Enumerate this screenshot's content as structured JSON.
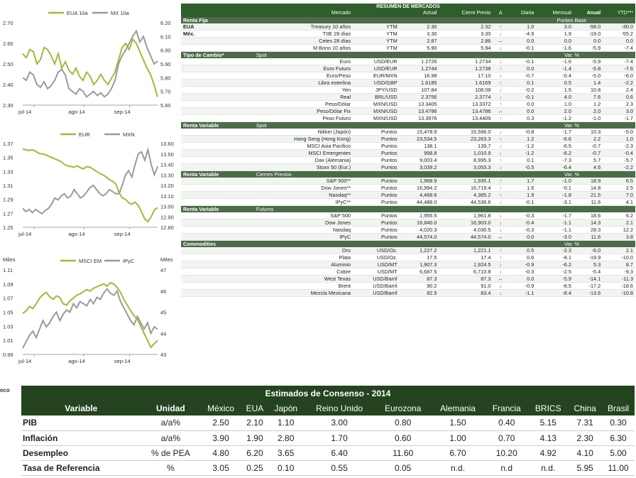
{
  "charts": [
    {
      "legend": [
        "EUA 10a",
        "MX 10a"
      ],
      "colors": {
        "a": "#9dbb3a",
        "b": "#9a9a9a"
      },
      "left_ticks": [
        "2.70",
        "2.60",
        "2.50",
        "2.40",
        "2.30"
      ],
      "right_ticks": [
        "6.20",
        "6.10",
        "6.00",
        "5.90",
        "5.80",
        "5.70",
        "5.60"
      ],
      "x_ticks": [
        "jul-14",
        "ago-14",
        "sep-14"
      ],
      "left_range": [
        2.3,
        2.7
      ],
      "right_range": [
        5.6,
        6.2
      ],
      "series_a": [
        2.55,
        2.53,
        2.57,
        2.56,
        2.5,
        2.52,
        2.58,
        2.57,
        2.54,
        2.5,
        2.55,
        2.48,
        2.51,
        2.47,
        2.45,
        2.48,
        2.44,
        2.42,
        2.46,
        2.44,
        2.4,
        2.42,
        2.45,
        2.42,
        2.4,
        2.43,
        2.46,
        2.52,
        2.58,
        2.6,
        2.57,
        2.62,
        2.6,
        2.56,
        2.52,
        2.48,
        2.45,
        2.4,
        2.34
      ],
      "series_b": [
        5.8,
        5.78,
        5.84,
        5.82,
        5.75,
        5.73,
        5.77,
        5.72,
        5.74,
        5.78,
        5.84,
        5.86,
        5.82,
        5.72,
        5.7,
        5.68,
        5.72,
        5.7,
        5.66,
        5.68,
        5.7,
        5.67,
        5.69,
        5.66,
        5.68,
        5.72,
        5.78,
        5.9,
        5.96,
        6.0,
        6.05,
        6.1,
        6.14,
        6.06,
        6.1,
        6.02,
        5.96,
        5.9,
        5.92
      ]
    },
    {
      "legend": [
        "EUR",
        "MXN"
      ],
      "colors": {
        "a": "#9dbb3a",
        "b": "#9a9a9a"
      },
      "left_ticks": [
        "1.37",
        "1.35",
        "1.33",
        "1.31",
        "1.29",
        "1.27",
        "1.25"
      ],
      "right_ticks": [
        "13.60",
        "13.50",
        "13.40",
        "13.30",
        "13.20",
        "13.10",
        "13.00",
        "12.90",
        "12.80"
      ],
      "x_ticks": [
        "jul-14",
        "ago-14",
        "sep-14"
      ],
      "left_range": [
        1.25,
        1.37
      ],
      "right_range": [
        12.8,
        13.6
      ],
      "series_a": [
        1.362,
        1.361,
        1.36,
        1.361,
        1.359,
        1.356,
        1.355,
        1.354,
        1.352,
        1.35,
        1.348,
        1.346,
        1.344,
        1.34,
        1.338,
        1.337,
        1.336,
        1.338,
        1.335,
        1.334,
        1.337,
        1.336,
        1.333,
        1.33,
        1.327,
        1.325,
        1.322,
        1.318,
        1.316,
        1.312,
        1.3,
        1.292,
        1.29,
        1.285,
        1.283,
        1.286,
        1.281,
        1.272,
        1.262,
        1.258,
        1.265,
        1.275,
        1.278
      ],
      "series_b": [
        12.98,
        12.95,
        12.97,
        12.94,
        12.97,
        12.95,
        12.93,
        12.96,
        12.98,
        13.02,
        13.08,
        13.06,
        13.1,
        13.12,
        13.08,
        13.1,
        13.16,
        13.12,
        13.08,
        13.1,
        13.14,
        13.18,
        13.2,
        13.16,
        13.12,
        13.1,
        13.12,
        13.16,
        13.14,
        13.12,
        13.12,
        13.2,
        13.3,
        13.34,
        13.28,
        13.4,
        13.5,
        13.52,
        13.44,
        13.54,
        13.4,
        13.3,
        13.38
      ]
    },
    {
      "legend": [
        "MSCI EM",
        "IPyC"
      ],
      "colors": {
        "a": "#9dbb3a",
        "b": "#9a9a9a"
      },
      "axis_unit_left": "Miles",
      "axis_unit_right": "Miles",
      "left_ticks": [
        "1.11",
        "1.09",
        "1.07",
        "1.05",
        "1.03",
        "1.01",
        "0.99"
      ],
      "right_ticks": [
        "47",
        "46",
        "45",
        "44",
        "43"
      ],
      "x_ticks": [
        "jul-14",
        "ago-14",
        "sep-14"
      ],
      "left_range": [
        0.99,
        1.11
      ],
      "right_range": [
        43,
        47
      ],
      "series_a": [
        1.048,
        1.052,
        1.058,
        1.055,
        1.062,
        1.07,
        1.075,
        1.078,
        1.072,
        1.068,
        1.073,
        1.071,
        1.062,
        1.06,
        1.066,
        1.07,
        1.074,
        1.076,
        1.079,
        1.082,
        1.08,
        1.084,
        1.086,
        1.088,
        1.09,
        1.087,
        1.092,
        1.09,
        1.085,
        1.078,
        1.068,
        1.06,
        1.052,
        1.045,
        1.04,
        1.03,
        1.02,
        1.01,
        1.0,
        1.005,
        1.01
      ],
      "series_b": [
        43.3,
        43.6,
        43.9,
        44.1,
        43.8,
        44.2,
        44.6,
        44.3,
        44.5,
        44.8,
        45.0,
        44.6,
        44.9,
        45.1,
        45.0,
        45.4,
        45.2,
        45.5,
        45.4,
        45.3,
        45.6,
        45.4,
        45.7,
        45.6,
        45.9,
        46.1,
        45.9,
        45.8,
        46.0,
        45.5,
        45.2,
        44.9,
        44.6,
        44.4,
        44.8,
        44.5,
        44.2,
        44.5,
        44.0,
        44.3,
        44.2
      ]
    }
  ],
  "source_fragment": "eco",
  "market": {
    "title": "RESUMEN DE MERCADOS",
    "cols": [
      "Mercado",
      "Actual",
      "Cierre Previo",
      "Δ",
      "Diaria",
      "Mensual",
      "Anual",
      "YTD***"
    ],
    "sections": [
      {
        "title": "Renta Fija",
        "subtitle": "",
        "unit_header": "Puntos Base",
        "rows": [
          {
            "group": "EUA",
            "name": "Treasury 10 años",
            "type": "YTM",
            "actual": "2.30",
            "prev": "2.32",
            "dir": "up",
            "d": "1.0",
            "m": "3.0",
            "a": "-58.0",
            "y": "-30.0"
          },
          {
            "group": "Méx.",
            "name": "TIIE 28 días",
            "type": "YTM",
            "actual": "3.30",
            "prev": "3.30",
            "dir": "dn",
            "d": "-4.9",
            "m": "1.9",
            "a": "-19.0",
            "y": "-55.2"
          },
          {
            "group": "",
            "name": "Cetes 28 días",
            "type": "YTM",
            "actual": "2.87",
            "prev": "2.86",
            "dir": "eq",
            "d": "0.0",
            "m": "0.0",
            "a": "0.0",
            "y": "0.0"
          },
          {
            "group": "",
            "name": "M Bono 10 años",
            "type": "YTM",
            "actual": "5.90",
            "prev": "5.94",
            "dir": "dn",
            "d": "-0.1",
            "m": "-1.6",
            "a": "-5.9",
            "y": "-7.4"
          }
        ]
      },
      {
        "title": "Tipo de Cambio*",
        "subtitle": "Spot",
        "unit_header": "Var. %",
        "rows": [
          {
            "group": "",
            "name": "Euro",
            "type": "USD/EUR",
            "actual": "1.2726",
            "prev": "1.2734",
            "dir": "dn",
            "d": "-0.1",
            "m": "-1.6",
            "a": "-5.9",
            "y": "-7.4"
          },
          {
            "group": "",
            "name": "Euro Futuro",
            "type": "USD/EUR",
            "actual": "1.2744",
            "prev": "1.2738",
            "dir": "up",
            "d": "0.0",
            "m": "-1.4",
            "a": "-5.8",
            "y": "-7.6"
          },
          {
            "group": "",
            "name": "Euro/Peso",
            "type": "EUR/MXN",
            "actual": "16.98",
            "prev": "17.10",
            "dir": "dn",
            "d": "-0.7",
            "m": "-0.4",
            "a": "-5.0",
            "y": "-6.0"
          },
          {
            "group": "",
            "name": "Libra esterlina",
            "type": "USD/GBP",
            "actual": "1.6185",
            "prev": "1.6169",
            "dir": "up",
            "d": "0.1",
            "m": "0.5",
            "a": "1.4",
            "y": "-2.2"
          },
          {
            "group": "",
            "name": "Yen",
            "type": "JPY/USD",
            "actual": "107.84",
            "prev": "108.08",
            "dir": "dn",
            "d": "-0.2",
            "m": "1.5",
            "a": "10.8",
            "y": "2.4"
          },
          {
            "group": "",
            "name": "Real",
            "type": "BRL/USD",
            "actual": "2.3756",
            "prev": "2.3774",
            "dir": "dn",
            "d": "-0.1",
            "m": "4.0",
            "a": "7.6",
            "y": "0.6"
          },
          {
            "group": "",
            "name": "Peso/Dólar",
            "type": "MXN/USD",
            "actual": "13.3405",
            "prev": "13.3372",
            "dir": "up",
            "d": "0.0",
            "m": "1.0",
            "a": "1.2",
            "y": "2.3"
          },
          {
            "group": "",
            "name": "Peso/Dólar Fix",
            "type": "MXN/USD",
            "actual": "13.4786",
            "prev": "13.4786",
            "dir": "eq",
            "d": "0.0",
            "m": "2.0",
            "a": "2.0",
            "y": "3.0"
          },
          {
            "group": "",
            "name": "Peso Futuro",
            "type": "MXN/USD",
            "actual": "13.3976",
            "prev": "13.4409",
            "dir": "up",
            "d": "0.3",
            "m": "-1.2",
            "a": "-1.0",
            "y": "-1.7"
          }
        ]
      },
      {
        "title": "Renta Variable",
        "subtitle": "Spot",
        "unit_header": "Var. %",
        "rows": [
          {
            "group": "",
            "name": "Nikkei (Japón)",
            "type": "Puntos",
            "actual": "15,478.9",
            "prev": "15,596.0",
            "dir": "dn",
            "d": "-0.8",
            "m": "-1.7",
            "a": "10.3",
            "y": "-5.0"
          },
          {
            "group": "",
            "name": "Hang Seng (Hong Kong)",
            "type": "Puntos",
            "actual": "23,534.5",
            "prev": "23,263.3",
            "dir": "up",
            "d": "1.2",
            "m": "-6.6",
            "a": "2.2",
            "y": "1.0"
          },
          {
            "group": "",
            "name": "MSCI Asia Pacifico",
            "type": "Puntos",
            "actual": "138.1",
            "prev": "139.7",
            "dir": "dn",
            "d": "-1.2",
            "m": "-6.5",
            "a": "-0.7",
            "y": "-2.3"
          },
          {
            "group": "",
            "name": "MSCI Emergentes",
            "type": "Puntos",
            "actual": "998.8",
            "prev": "1,010.9",
            "dir": "dn",
            "d": "-1.2",
            "m": "-8.2",
            "a": "-0.7",
            "y": "-0.4"
          },
          {
            "group": "",
            "name": "Dax (Alemania)",
            "type": "Puntos",
            "actual": "9,003.4",
            "prev": "8,995.3",
            "dir": "up",
            "d": "0.1",
            "m": "-7.3",
            "a": "5.7",
            "y": "-5.7"
          },
          {
            "group": "",
            "name": "Stoxx 50 (Eur.)",
            "type": "Puntos",
            "actual": "3,039.2",
            "prev": "3,053.3",
            "dir": "dn",
            "d": "-0.5",
            "m": "-6.4",
            "a": "4.6",
            "y": "-2.2"
          }
        ]
      },
      {
        "title": "Renta Variable",
        "subtitle": "Cierres Previos",
        "unit_header": "Var. %",
        "rows": [
          {
            "group": "",
            "name": "S&P 500**",
            "type": "Puntos",
            "actual": "1,968.9",
            "prev": "1,935.1",
            "dir": "up",
            "d": "1.7",
            "m": "-1.0",
            "a": "18.9",
            "y": "6.5"
          },
          {
            "group": "",
            "name": "Dow Jones**",
            "type": "Puntos",
            "actual": "16,994.2",
            "prev": "16,719.4",
            "dir": "up",
            "d": "1.6",
            "m": "-0.1",
            "a": "14.8",
            "y": "2.5"
          },
          {
            "group": "",
            "name": "Nasdaq**",
            "type": "Puntos",
            "actual": "4,468.6",
            "prev": "4,385.2",
            "dir": "up",
            "d": "1.9",
            "m": "-1.8",
            "a": "21.5",
            "y": "7.0"
          },
          {
            "group": "",
            "name": "IPyC**",
            "type": "Puntos",
            "actual": "44,488.0",
            "prev": "44,536.6",
            "dir": "dn",
            "d": "-0.1",
            "m": "-3.1",
            "a": "11.6",
            "y": "4.1"
          }
        ]
      },
      {
        "title": "Renta Variable",
        "subtitle": "Futuros",
        "unit_header": "",
        "rows": [
          {
            "group": "",
            "name": "S&P 500",
            "type": "Puntos",
            "actual": "1,955.5",
            "prev": "1,961.8",
            "dir": "dn",
            "d": "-0.3",
            "m": "-1.7",
            "a": "18.6",
            "y": "6.2"
          },
          {
            "group": "",
            "name": "Dow Jones",
            "type": "Puntos",
            "actual": "16,840.0",
            "prev": "16,903.0",
            "dir": "dn",
            "d": "-0.4",
            "m": "-1.1",
            "a": "14.3",
            "y": "2.1"
          },
          {
            "group": "",
            "name": "Nasdaq",
            "type": "Puntos",
            "actual": "4,020.3",
            "prev": "4,030.5",
            "dir": "dn",
            "d": "-0.3",
            "m": "-1.1",
            "a": "28.3",
            "y": "12.2"
          },
          {
            "group": "",
            "name": "IPyC",
            "type": "Puntos",
            "actual": "44,574.0",
            "prev": "44,574.0",
            "dir": "eq",
            "d": "0.0",
            "m": "-3.0",
            "a": "11.6",
            "y": "3.8"
          }
        ]
      },
      {
        "title": "Commodities",
        "subtitle": "",
        "unit_header": "Var. %",
        "rows": [
          {
            "group": "",
            "name": "Oro",
            "type": "USD/Oz.",
            "actual": "1,227.2",
            "prev": "1,221.1",
            "dir": "up",
            "d": "0.5",
            "m": "-2.3",
            "a": "-6.0",
            "y": "2.1"
          },
          {
            "group": "",
            "name": "Plata",
            "type": "USD/Oz.",
            "actual": "17.5",
            "prev": "17.4",
            "dir": "up",
            "d": "0.6",
            "m": "-8.1",
            "a": "-19.9",
            "y": "-10.0"
          },
          {
            "group": "",
            "name": "Aluminio",
            "type": "USD/MT",
            "actual": "1,907.3",
            "prev": "1,924.5",
            "dir": "dn",
            "d": "-0.9",
            "m": "-6.2",
            "a": "5.3",
            "y": "8.7"
          },
          {
            "group": "",
            "name": "Cobre",
            "type": "USD/MT",
            "actual": "6,687.5",
            "prev": "6,710.8",
            "dir": "dn",
            "d": "-0.3",
            "m": "-2.5",
            "a": "-5.4",
            "y": "-9.3"
          },
          {
            "group": "",
            "name": "West Texas",
            "type": "USD/Barril",
            "actual": "87.3",
            "prev": "87.3",
            "dir": "eq",
            "d": "0.0",
            "m": "-5.9",
            "a": "-14.1",
            "y": "-11.3"
          },
          {
            "group": "",
            "name": "Brent",
            "type": "USD/Barril",
            "actual": "90.2",
            "prev": "91.0",
            "dir": "dn",
            "d": "-0.9",
            "m": "-8.5",
            "a": "-17.2",
            "y": "-18.6"
          },
          {
            "group": "",
            "name": "Mezcla Mexicana",
            "type": "USD/Barril",
            "actual": "82.5",
            "prev": "83.4",
            "dir": "dn",
            "d": "-1.1",
            "m": "-8.4",
            "a": "-13.6",
            "y": "-10.8"
          }
        ]
      }
    ]
  },
  "consensus": {
    "title": "Estimados de Consenso - 2014",
    "headers": [
      "Variable",
      "Unidad",
      "México",
      "EUA",
      "Japón",
      "Reino Unido",
      "Eurozona",
      "Alemania",
      "Francia",
      "BRICS",
      "China",
      "Brasil"
    ],
    "rows": [
      [
        "PIB",
        "a/a%",
        "2.50",
        "2.10",
        "1.10",
        "3.00",
        "0.80",
        "1.50",
        "0.40",
        "5.15",
        "7.31",
        "0.30"
      ],
      [
        "Inflación",
        "a/a%",
        "3.90",
        "1.90",
        "2.80",
        "1.70",
        "0.60",
        "1.00",
        "0.70",
        "4.13",
        "2.30",
        "6.30"
      ],
      [
        "Desempleo",
        "% de PEA",
        "4.80",
        "6.20",
        "3.65",
        "6.40",
        "11.60",
        "6.70",
        "10.20",
        "4.92",
        "4.10",
        "5.00"
      ],
      [
        "Tasa de Referencia",
        "%",
        "3.05",
        "0.25",
        "0.10",
        "0.55",
        "0.05",
        "n.d.",
        "n.d",
        "n.d.",
        "5.95",
        "11.00"
      ]
    ]
  },
  "arrows": {
    "up": "↑",
    "dn": "↓",
    "eq": "↔"
  }
}
